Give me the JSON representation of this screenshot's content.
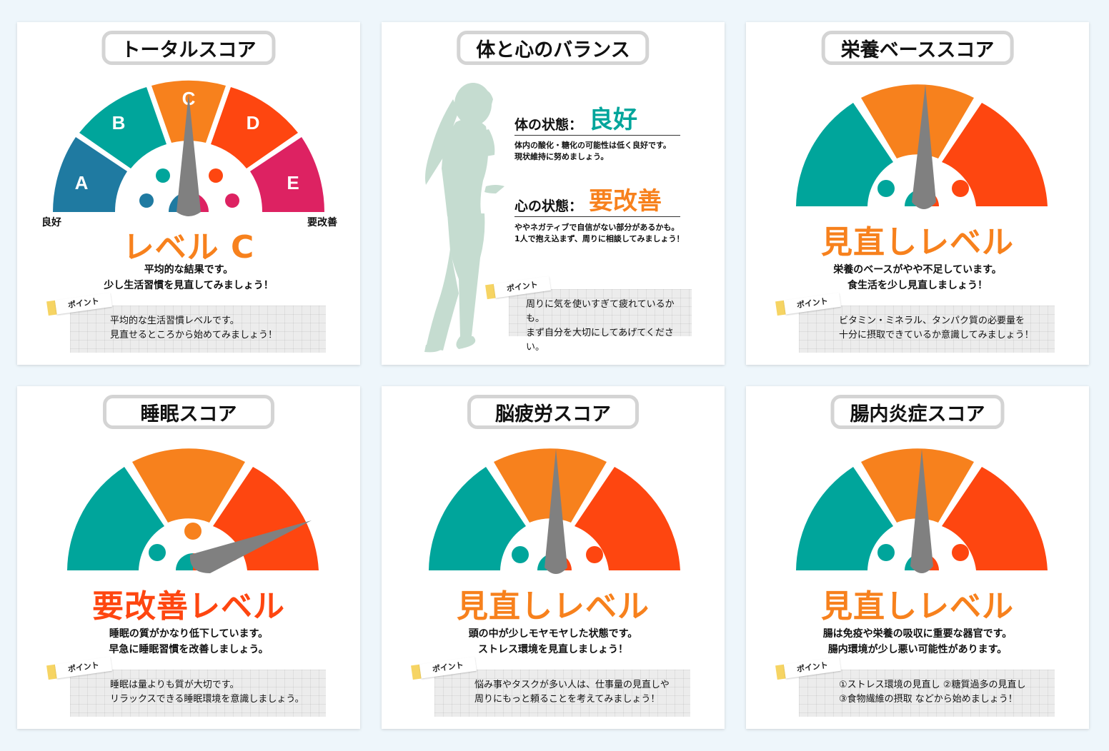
{
  "colors": {
    "teal": "#00a59b",
    "orange": "#f7811d",
    "red_orange": "#fe4610",
    "blue": "#1f7aa1",
    "magenta": "#dd2262",
    "needle": "#808080"
  },
  "cards": {
    "total": {
      "title": "トータルスコア",
      "segments": [
        "A",
        "B",
        "C",
        "D",
        "E"
      ],
      "label_good": "良好",
      "label_bad": "要改善",
      "level": "レベル C",
      "desc_1": "平均的な結果です。",
      "desc_2": "少し生活習慣を見直してみましょう！",
      "point_tag": "ポイント",
      "point_1": "平均的な生活習慣レベルです。",
      "point_2": "見直せるところから始めてみましょう！"
    },
    "balance": {
      "title": "体と心のバランス",
      "body_label": "体の状態：",
      "body_value": "良好",
      "body_text_1": "体内の酸化・糖化の可能性は低く良好です。",
      "body_text_2": "現状維持に努めましょう。",
      "mind_label": "心の状態：",
      "mind_value": "要改善",
      "mind_text_1": "ややネガティブで自信がない部分があるかも。",
      "mind_text_2": "1人で抱え込まず、周りに相談してみましょう！",
      "point_tag": "ポイント",
      "point_1": "周りに気を使いすぎて疲れているかも。",
      "point_2": "まず自分を大切にしてあげてください。"
    },
    "nutrition": {
      "title": "栄養ベーススコア",
      "level": "見直しレベル",
      "desc_1": "栄養のベースがやや不足しています。",
      "desc_2": "食生活を少し見直しましょう！",
      "point_tag": "ポイント",
      "point_1": "ビタミン・ミネラル、タンパク質の必要量を",
      "point_2": "十分に摂取できているか意識してみましょう！"
    },
    "sleep": {
      "title": "睡眠スコア",
      "level": "要改善レベル",
      "desc_1": "睡眠の質がかなり低下しています。",
      "desc_2": "早急に睡眠習慣を改善しましょう。",
      "point_tag": "ポイント",
      "point_1": "睡眠は量よりも質が大切です。",
      "point_2": "リラックスできる睡眠環境を意識しましょう。"
    },
    "brain": {
      "title": "脳疲労スコア",
      "level": "見直しレベル",
      "desc_1": "頭の中が少しモヤモヤした状態です。",
      "desc_2": "ストレス環境を見直しましょう！",
      "point_tag": "ポイント",
      "point_1": "悩み事やタスクが多い人は、仕事量の見直しや",
      "point_2": "周りにもっと頼ることを考えてみましょう！"
    },
    "gut": {
      "title": "腸内炎症スコア",
      "level": "見直しレベル",
      "desc_1": "腸は免疫や栄養の吸収に重要な器官です。",
      "desc_2": "腸内環境が少し悪い可能性があります。",
      "point_tag": "ポイント",
      "point_1": "①ストレス環境の見直し ②糖質過多の見直し",
      "point_2": "③食物繊維の摂取 などから始めましょう！"
    }
  }
}
